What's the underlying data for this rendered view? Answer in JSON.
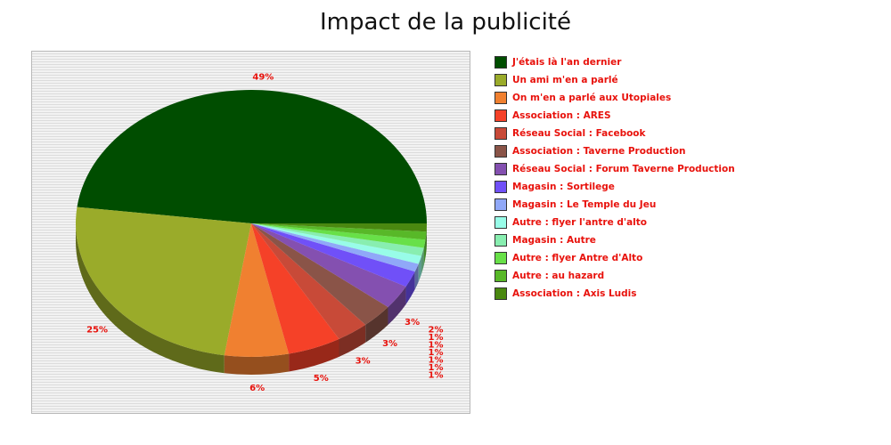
{
  "chart_data": {
    "type": "pie",
    "title": "Impact de la publicité",
    "slices": [
      {
        "label": "J'étais là l'an dernier",
        "value": 49,
        "display": "49%",
        "color": "#004d00"
      },
      {
        "label": "Un ami m'en a parlé",
        "value": 25,
        "display": "25%",
        "color": "#9aab2a"
      },
      {
        "label": "On m'en a parlé aux Utopiales",
        "value": 6,
        "display": "6%",
        "color": "#f08030"
      },
      {
        "label": "Association : ARES",
        "value": 5,
        "display": "5%",
        "color": "#f54128"
      },
      {
        "label": "Réseau Social : Facebook",
        "value": 3,
        "display": "3%",
        "color": "#c84a38"
      },
      {
        "label": "Association : Taverne Production",
        "value": 3,
        "display": "3%",
        "color": "#8a5448"
      },
      {
        "label": "Réseau Social : Forum Taverne Production",
        "value": 3,
        "display": "3%",
        "color": "#8450b0"
      },
      {
        "label": "Magasin : Sortilege",
        "value": 2,
        "display": "2%",
        "color": "#7050f8"
      },
      {
        "label": "Magasin : Le Temple du Jeu",
        "value": 1,
        "display": "1%",
        "color": "#90a8f8"
      },
      {
        "label": "Autre : flyer l'antre d'alto",
        "value": 1,
        "display": "1%",
        "color": "#98fce8"
      },
      {
        "label": "Magasin : Autre",
        "value": 1,
        "display": "1%",
        "color": "#88eeb0"
      },
      {
        "label": "Autre : flyer Antre d'Alto",
        "value": 1,
        "display": "1%",
        "color": "#68e048"
      },
      {
        "label": "Autre : au hazard",
        "value": 1,
        "display": "1%",
        "color": "#58b828"
      },
      {
        "label": "Association : Axis Ludis",
        "value": 1,
        "display": "1%",
        "color": "#4a8810"
      }
    ],
    "legend_position": "right",
    "grid": false
  }
}
